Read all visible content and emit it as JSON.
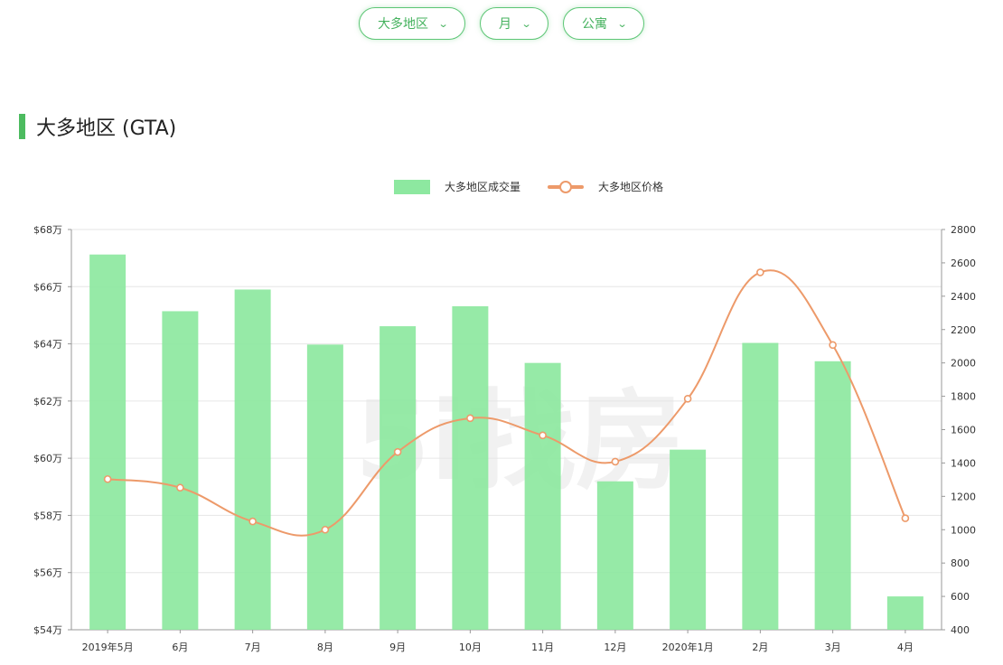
{
  "filters": {
    "region": "大多地区",
    "period": "月",
    "property_type": "公寓",
    "chevron": "⌄"
  },
  "section": {
    "title": "大多地区 (GTA)",
    "accent_color": "#4cbb5f"
  },
  "colors": {
    "bar": "#8de8a0",
    "line": "#ed9a6a",
    "grid": "#e6e6e6",
    "axis": "#999999"
  },
  "watermark": "5i找房",
  "chart_data": {
    "type": "bar",
    "categories": [
      "2019年5月",
      "6月",
      "7月",
      "8月",
      "9月",
      "10月",
      "11月",
      "12月",
      "2020年1月",
      "2月",
      "3月",
      "4月"
    ],
    "series": [
      {
        "name": "大多地区成交量",
        "kind": "bar",
        "axis": "right",
        "values": [
          2650,
          2310,
          2440,
          2110,
          2220,
          2340,
          2000,
          1290,
          1480,
          2120,
          2010,
          600
        ]
      },
      {
        "name": "大多地区价格",
        "kind": "line",
        "axis": "left",
        "values": [
          59.27,
          58.97,
          57.79,
          57.5,
          60.22,
          61.4,
          60.8,
          59.88,
          62.08,
          66.5,
          63.96,
          57.9
        ]
      }
    ],
    "y_left": {
      "min": 54,
      "max": 68,
      "step": 2,
      "ticks": [
        54,
        56,
        58,
        60,
        62,
        64,
        66,
        68
      ],
      "tick_labels": [
        "$54万",
        "$56万",
        "$58万",
        "$60万",
        "$62万",
        "$64万",
        "$66万",
        "$68万"
      ]
    },
    "y_right": {
      "min": 400,
      "max": 2800,
      "step": 200,
      "ticks": [
        400,
        600,
        800,
        1000,
        1200,
        1400,
        1600,
        1800,
        2000,
        2200,
        2400,
        2600,
        2800
      ]
    },
    "legend": [
      "大多地区成交量",
      "大多地区价格"
    ],
    "legend_position": "top-center",
    "grid": true
  }
}
